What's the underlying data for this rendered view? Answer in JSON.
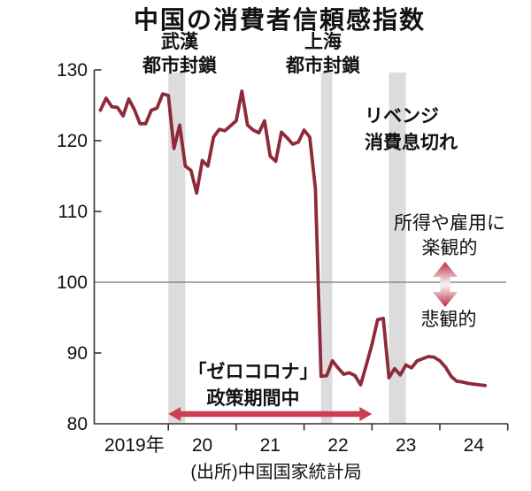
{
  "title": "中国の消費者信頼感指数",
  "source": "(出所)中国国家統計局",
  "annotations": {
    "wuhan_line1": "武漢",
    "wuhan_line2": "都市封鎖",
    "shanghai_line1": "上海",
    "shanghai_line2": "都市封鎖",
    "revenge_line1": "リベンジ",
    "revenge_line2": "消費息切れ",
    "optimism_line1": "所得や雇用に",
    "optimism_line2": "楽観的",
    "pessimism": "悲観的",
    "zero_covid_line1": "「ゼロコロナ」",
    "zero_covid_line2": "政策期間中"
  },
  "colors": {
    "line": "#8e2b3a",
    "band": "#dcdcdc",
    "period_arrow": "#cb3f56",
    "updown_arrow_edge": "#b72c42",
    "updown_arrow_mid": "#f7e9ec",
    "axis": "#333333",
    "reference_line": "#777777",
    "text": "#111111",
    "background": "#ffffff"
  },
  "chart_data": {
    "type": "line",
    "title": "中国の消費者信頼感指数",
    "xlabel": "",
    "ylabel": "",
    "ylim": [
      80,
      130
    ],
    "y_ticks": [
      80,
      90,
      100,
      110,
      120,
      130
    ],
    "reference_line_y": 100,
    "x_tick_labels": [
      "2019年",
      "20",
      "21",
      "22",
      "23",
      "24"
    ],
    "grid": false,
    "legend_position": "none",
    "series": [
      {
        "name": "中国の消費者信頼感指数",
        "start_month": "2019-01",
        "values": [
          124.3,
          126.0,
          124.8,
          124.7,
          123.5,
          125.9,
          124.4,
          122.4,
          122.4,
          124.3,
          124.6,
          126.6,
          126.4,
          118.9,
          122.2,
          116.4,
          115.8,
          112.6,
          117.2,
          116.4,
          120.5,
          121.6,
          121.4,
          122.1,
          122.8,
          127.0,
          122.2,
          121.5,
          121.1,
          122.8,
          117.8,
          117.1,
          121.2,
          120.4,
          119.5,
          119.8,
          121.5,
          120.5,
          113.2,
          86.7,
          86.8,
          88.9,
          87.9,
          87.0,
          87.2,
          86.8,
          85.5,
          88.3,
          91.2,
          94.7,
          94.9,
          86.5,
          87.8,
          86.9,
          88.3,
          87.9,
          88.9,
          89.2,
          89.5,
          89.4,
          88.9,
          88.0,
          86.7,
          86.0,
          85.9,
          85.7,
          85.6,
          85.5,
          85.4
        ]
      }
    ],
    "shaded_periods": [
      {
        "label": "武漢都市封鎖",
        "from": "2020-01",
        "to": "2020-03"
      },
      {
        "label": "上海都市封鎖",
        "from": "2022-04",
        "to": "2022-05"
      },
      {
        "label": "リベンジ消費息切れ",
        "from": "2023-04",
        "to": "2023-06"
      }
    ],
    "period_arrow": {
      "label": "「ゼロコロナ」政策期間中",
      "from": "2020-01",
      "to": "2022-12"
    },
    "reference_annotation": {
      "above": "所得や雇用に楽観的",
      "below": "悲観的",
      "at": 100
    }
  }
}
